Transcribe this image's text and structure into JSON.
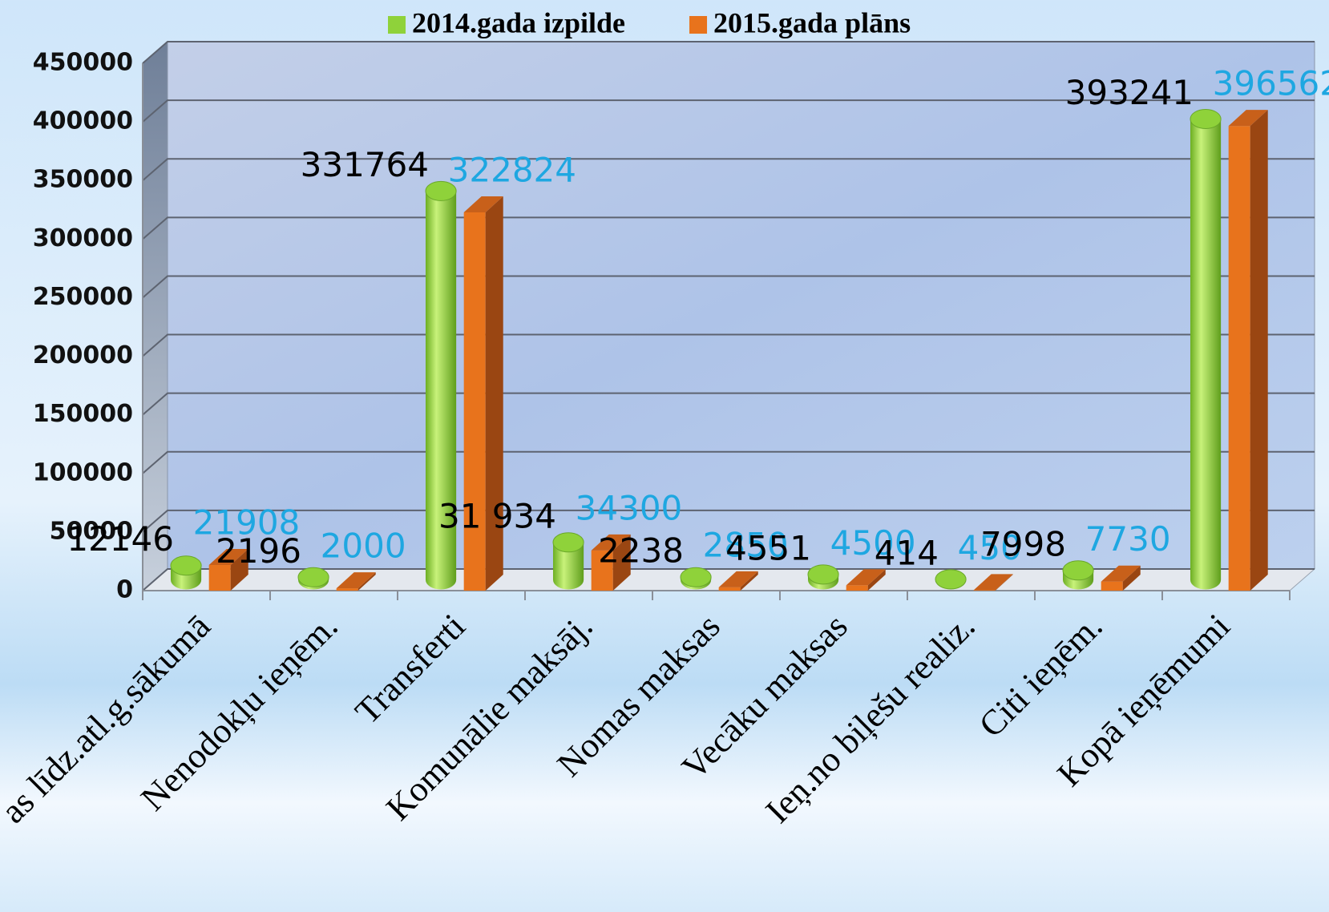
{
  "chart_data": {
    "type": "bar3d",
    "categories": [
      "as līdz.atl.g.sākumā",
      "Nenodokļu ieņēm.",
      "Transferti",
      "Komunālie maksāj.",
      "Nomas maksas",
      "Vecāku maksas",
      "Ieņ.no biļešu realiz.",
      "Citi ieņēm.",
      "Kopā ieņēmumi"
    ],
    "series": [
      {
        "name": "2014.gada izpilde",
        "color": "#8fd23a",
        "label_color": "#000000",
        "values": [
          12146,
          2196,
          331764,
          31934,
          2238,
          4551,
          414,
          7998,
          393241
        ],
        "value_labels": [
          "12146",
          "2196",
          "331764",
          "31 934",
          "2238",
          "4551",
          "414",
          "7998",
          "393241"
        ]
      },
      {
        "name": "2015.gada plāns",
        "color": "#e8731c",
        "label_color": "#1ea7e1",
        "values": [
          21908,
          2000,
          322824,
          34300,
          2850,
          4500,
          450,
          7730,
          396562
        ]
      }
    ],
    "ylim": [
      0,
      450000
    ],
    "yticks": [
      0,
      50000,
      100000,
      150000,
      200000,
      250000,
      300000,
      350000,
      400000,
      450000
    ],
    "grid": true,
    "legend": "top"
  }
}
